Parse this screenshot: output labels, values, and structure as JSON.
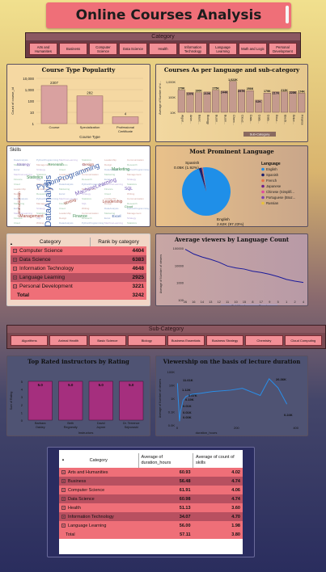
{
  "title": "Online Courses Analysis",
  "category_slicer": {
    "header": "Category",
    "items": [
      "Arts and Humanities",
      "Business",
      "Computer Science",
      "Data Science",
      "Health",
      "Information Technology",
      "Language Learning",
      "Math and Logic",
      "Personal Development"
    ]
  },
  "course_type_chart": {
    "title": "Course Type Popularity",
    "xlabel": "Course Type",
    "ylabel": "Count of course_id",
    "yticks": [
      "10,000",
      "1,000",
      "100",
      "10",
      "1"
    ],
    "chart_data": {
      "type": "bar",
      "categories": [
        "Course",
        "Specialization",
        "Professional Certificate"
      ],
      "values": [
        2307,
        282,
        4
      ],
      "value_labels": [
        "2307",
        "282",
        "4"
      ],
      "log_scale": true,
      "ylim": [
        1,
        10000
      ]
    }
  },
  "lang_subcat_chart": {
    "title": "Courses As per language and sub-category",
    "xlabel": "Sub-Category",
    "ylabel": "Average of Number of vi...",
    "yticks": [
      "1,000K",
      "100K",
      "10K"
    ],
    "chart_data": {
      "type": "bar",
      "categories": [
        "Algori...",
        "Anim...",
        "Basic...",
        "Biology",
        "Busin...",
        "Busin...",
        "Chem...",
        "Cloud...",
        "Data...",
        "Data...",
        "Data...",
        "Educ...",
        "Electr...",
        "Entre...",
        "Finance"
      ],
      "value_labels": [
        "279K",
        "197K",
        "190K",
        "210K",
        "275K",
        "244K",
        "1,022K",
        "297K",
        "256K",
        "62K",
        "179K",
        "217K",
        "212K",
        "228K",
        "174K"
      ],
      "values": [
        279,
        197,
        190,
        210,
        275,
        244,
        1022,
        297,
        256,
        62,
        179,
        217,
        212,
        228,
        174
      ],
      "log_scale": true,
      "ylim": [
        10,
        1000
      ]
    }
  },
  "skills": {
    "title": "Skills",
    "words": [
      {
        "t": "DataAnalysis",
        "c": "#3b5fa8"
      },
      {
        "t": "PythonProgramming",
        "c": "#3b5fa8"
      },
      {
        "t": "MachineLearning",
        "c": "#7b5fb8"
      },
      {
        "t": "Statistics",
        "c": "#3a8a4f"
      },
      {
        "t": "Leadership",
        "c": "#a4483c"
      },
      {
        "t": "Communication",
        "c": "#a4483c"
      },
      {
        "t": "Marketing",
        "c": "#3a8a4f"
      },
      {
        "t": "Management",
        "c": "#a4483c"
      },
      {
        "t": "Finance",
        "c": "#3a8a4f"
      },
      {
        "t": "SQL",
        "c": "#7b5fb8"
      },
      {
        "t": "Design",
        "c": "#a4483c"
      },
      {
        "t": "Research",
        "c": "#3a8a4f"
      },
      {
        "t": "Excel",
        "c": "#3b5fa8"
      },
      {
        "t": "Strategy",
        "c": "#7b5fb8"
      },
      {
        "t": "Cloud",
        "c": "#3a8a4f"
      },
      {
        "t": "Writing",
        "c": "#a4483c"
      }
    ]
  },
  "language_pie": {
    "title": "Most Prominent Language",
    "legend_title": "Language",
    "label_small": "Spanish",
    "label_small_value": "0.05K (1.92%)",
    "label_big": "English",
    "label_big_value": "2.62K (97.23%)",
    "chart_data": {
      "type": "pie",
      "categories": [
        "English",
        "Spanish",
        "French",
        "Japanese",
        "Chinese (Simplifi...",
        "Portuguese (Braz...",
        "Russian"
      ],
      "values": [
        97.23,
        1.92,
        0.3,
        0.2,
        0.15,
        0.12,
        0.08
      ],
      "colors": [
        "#1f8fe8",
        "#1b1f6e",
        "#e8734a",
        "#6b1f8a",
        "#e04a9c",
        "#7b3fb0",
        "#e8c23a"
      ]
    }
  },
  "category_table": {
    "headers": [
      "Category",
      "Rank by category"
    ],
    "rows": [
      {
        "name": "Computer Science",
        "value": "4404",
        "bg": "#ef6f78"
      },
      {
        "name": "Data Science",
        "value": "6383",
        "bg": "#b85060"
      },
      {
        "name": "Information Technology",
        "value": "4648",
        "bg": "#ef6f78"
      },
      {
        "name": "Language Learning",
        "value": "2925",
        "bg": "#b85060"
      },
      {
        "name": "Personal Development",
        "value": "3221",
        "bg": "#ef6f78"
      }
    ],
    "total_label": "Total",
    "total_value": "3242"
  },
  "viewers_chart": {
    "title": "Average viewers by Language Count",
    "xlabel": "Subtitles Language Count",
    "ylabel": "Average of Number of viewers",
    "yticks": [
      "100000",
      "10000",
      "1000",
      "100"
    ],
    "chart_data": {
      "type": "line",
      "x": [
        "26",
        "16",
        "14",
        "13",
        "12",
        "11",
        "10",
        "15",
        "8",
        "17",
        "9",
        "5",
        "1",
        "2",
        "4"
      ],
      "values": [
        85000,
        45000,
        30000,
        22000,
        15000,
        9000,
        7000,
        6000,
        4500,
        3800,
        3000,
        2200,
        1500,
        1200,
        1000
      ],
      "log_scale": true,
      "ylim": [
        100,
        100000
      ]
    }
  },
  "subcategory_slicer": {
    "header": "Sub-Category",
    "items": [
      "Algorithms",
      "Animal Health",
      "Basic Science",
      "Biology",
      "Business Essentials",
      "Business Strategy",
      "Chemistry",
      "Cloud Computing"
    ]
  },
  "instructors_chart": {
    "title": "Top Rated instructors by Rating",
    "xlabel": "Instructors",
    "ylabel": "Sum of Rating",
    "yticks": [
      "5",
      "4",
      "3",
      "2",
      "1",
      "0"
    ],
    "chart_data": {
      "type": "bar",
      "categories": [
        "Barbara Oakley",
        "Beth Regnestly",
        "David Joyner",
        "Dr. Terrence Sejnowski"
      ],
      "values": [
        5.0,
        5.0,
        5.0,
        5.0
      ],
      "value_labels": [
        "5.0",
        "5.0",
        "5.0",
        "5.0"
      ],
      "ylim": [
        0,
        5
      ]
    }
  },
  "duration_chart": {
    "title": "Viewership on the basis of lecture duration",
    "xlabel": "duration_hours",
    "ylabel": "Average of Number of viewers",
    "yticks": [
      "100K",
      "10K",
      "1K",
      "0.1K",
      "0.0K"
    ],
    "xticks": [
      "0",
      "200",
      "400"
    ],
    "labels": [
      "11.61K",
      "1.12K",
      "0.19K",
      "0.01K",
      "0.01K",
      "0.00K",
      "0.07K",
      "26.36K",
      "0.24K"
    ],
    "chart_data": {
      "type": "line",
      "x": [
        1,
        3,
        5,
        8,
        12,
        20,
        30,
        50,
        80,
        120,
        180,
        220,
        280,
        310,
        340,
        370
      ],
      "values": [
        11.61,
        1.12,
        0.19,
        0.01,
        0.07,
        0.5,
        1.0,
        1.5,
        1.8,
        2.5,
        3.2,
        4.5,
        1.2,
        26.36,
        5.0,
        0.24
      ],
      "log_scale": true,
      "xlim": [
        0,
        420
      ]
    }
  },
  "duration_table": {
    "headers": [
      "Category",
      "Average of duration_hours",
      "Average of count of skills"
    ],
    "rows": [
      {
        "name": "Arts and Humanities",
        "d": "60.93",
        "s": "4.02",
        "bg": "#ef6f78"
      },
      {
        "name": "Business",
        "d": "56.48",
        "s": "4.74",
        "bg": "#b85060"
      },
      {
        "name": "Computer Science",
        "d": "61.91",
        "s": "4.06",
        "bg": "#ef6f78"
      },
      {
        "name": "Data Science",
        "d": "60.98",
        "s": "4.74",
        "bg": "#b85060"
      },
      {
        "name": "Health",
        "d": "51.13",
        "s": "3.60",
        "bg": "#ef6f78"
      },
      {
        "name": "Information Technology",
        "d": "34.07",
        "s": "4.70",
        "bg": "#b85060"
      },
      {
        "name": "Language Learning",
        "d": "56.00",
        "s": "1.98",
        "bg": "#ef6f78"
      }
    ],
    "total_label": "Total",
    "total_d": "57.11",
    "total_s": "3.80"
  }
}
